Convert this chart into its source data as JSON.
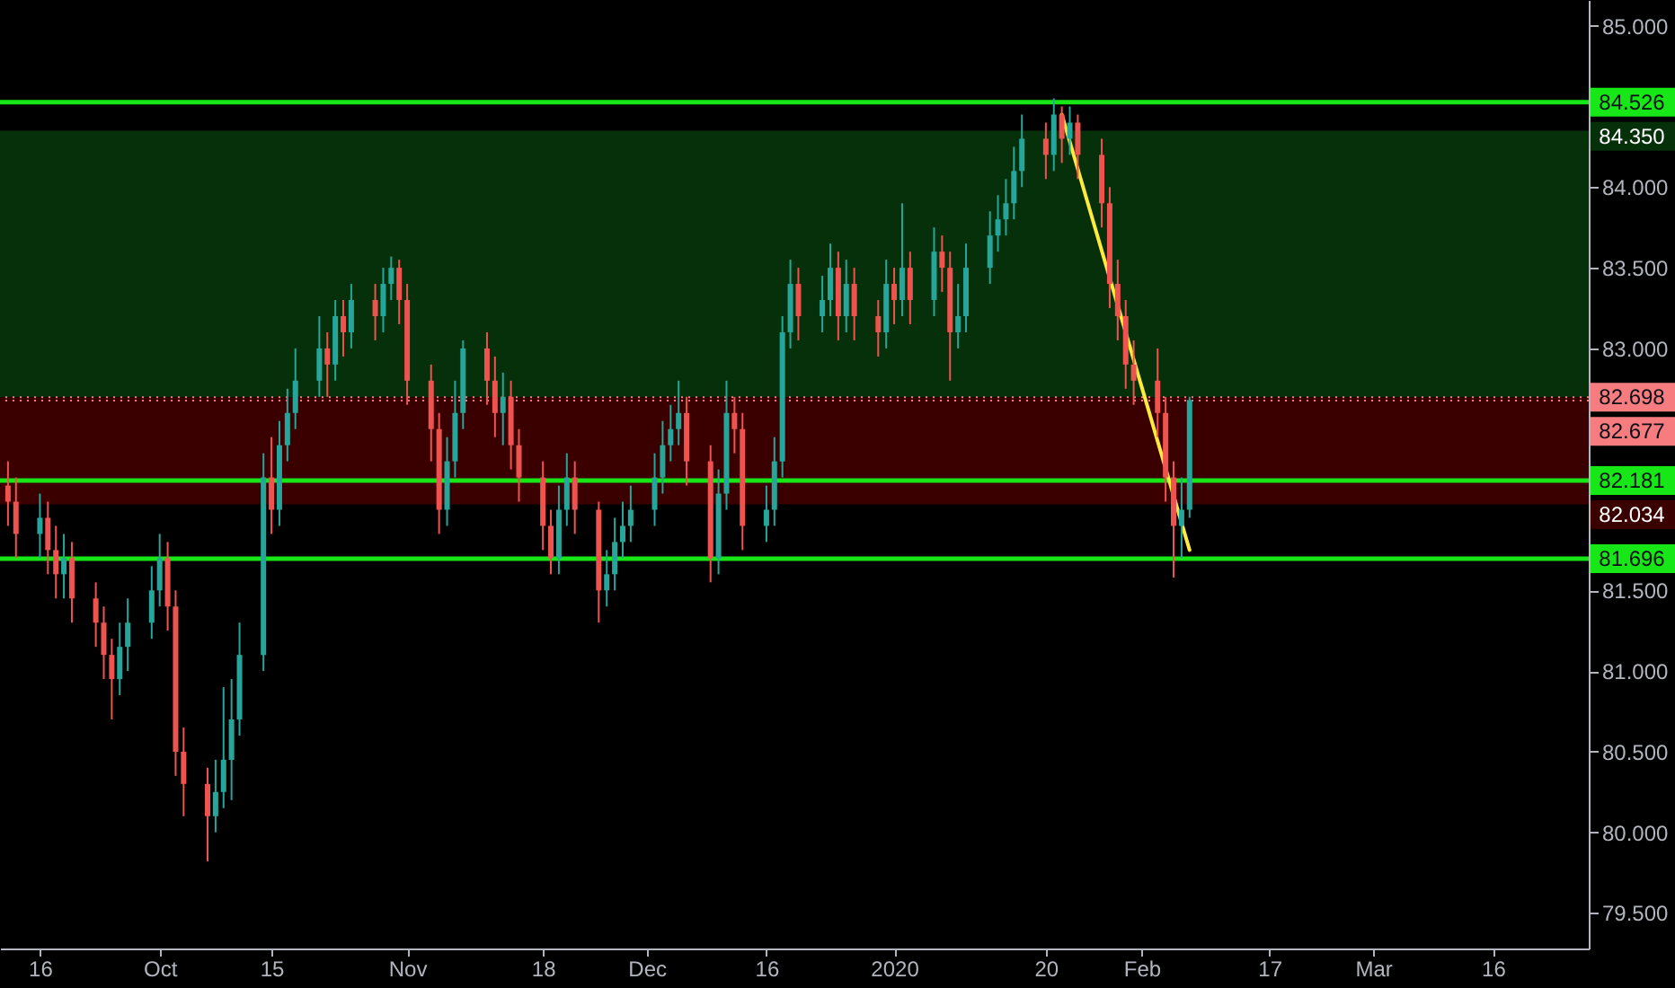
{
  "chart_data": {
    "type": "candlestick",
    "x": [
      "2019-09-12",
      "2019-09-13",
      "2019-09-16",
      "2019-09-17",
      "2019-09-18",
      "2019-09-19",
      "2019-09-20",
      "2019-09-23",
      "2019-09-24",
      "2019-09-25",
      "2019-09-26",
      "2019-09-27",
      "2019-09-30",
      "2019-10-01",
      "2019-10-02",
      "2019-10-03",
      "2019-10-04",
      "2019-10-07",
      "2019-10-08",
      "2019-10-09",
      "2019-10-10",
      "2019-10-11",
      "2019-10-14",
      "2019-10-15",
      "2019-10-16",
      "2019-10-17",
      "2019-10-18",
      "2019-10-21",
      "2019-10-22",
      "2019-10-23",
      "2019-10-24",
      "2019-10-25",
      "2019-10-28",
      "2019-10-29",
      "2019-10-30",
      "2019-10-31",
      "2019-11-01",
      "2019-11-04",
      "2019-11-05",
      "2019-11-06",
      "2019-11-07",
      "2019-11-08",
      "2019-11-11",
      "2019-11-12",
      "2019-11-13",
      "2019-11-14",
      "2019-11-15",
      "2019-11-18",
      "2019-11-19",
      "2019-11-20",
      "2019-11-21",
      "2019-11-22",
      "2019-11-25",
      "2019-11-26",
      "2019-11-27",
      "2019-11-28",
      "2019-11-29",
      "2019-12-02",
      "2019-12-03",
      "2019-12-04",
      "2019-12-05",
      "2019-12-06",
      "2019-12-09",
      "2019-12-10",
      "2019-12-11",
      "2019-12-12",
      "2019-12-13",
      "2019-12-16",
      "2019-12-17",
      "2019-12-18",
      "2019-12-19",
      "2019-12-20",
      "2019-12-23",
      "2019-12-24",
      "2019-12-25",
      "2019-12-26",
      "2019-12-27",
      "2019-12-30",
      "2019-12-31",
      "2020-01-01",
      "2020-01-02",
      "2020-01-03",
      "2020-01-06",
      "2020-01-07",
      "2020-01-08",
      "2020-01-09",
      "2020-01-10",
      "2020-01-13",
      "2020-01-14",
      "2020-01-15",
      "2020-01-16",
      "2020-01-17",
      "2020-01-20",
      "2020-01-21",
      "2020-01-22",
      "2020-01-23",
      "2020-01-24",
      "2020-01-27",
      "2020-01-28",
      "2020-01-29",
      "2020-01-30",
      "2020-01-31",
      "2020-02-03",
      "2020-02-04",
      "2020-02-05",
      "2020-02-06",
      "2020-02-07"
    ],
    "ohlc": [
      [
        82.15,
        82.3,
        81.9,
        82.05
      ],
      [
        82.05,
        82.2,
        81.7,
        81.85
      ],
      [
        81.85,
        82.1,
        81.7,
        81.95
      ],
      [
        81.95,
        82.05,
        81.6,
        81.75
      ],
      [
        81.75,
        81.9,
        81.45,
        81.6
      ],
      [
        81.6,
        81.85,
        81.45,
        81.7
      ],
      [
        81.7,
        81.8,
        81.3,
        81.45
      ],
      [
        81.45,
        81.55,
        81.15,
        81.3
      ],
      [
        81.3,
        81.4,
        80.95,
        81.1
      ],
      [
        81.1,
        81.2,
        80.7,
        80.95
      ],
      [
        80.95,
        81.3,
        80.85,
        81.15
      ],
      [
        81.15,
        81.45,
        81.0,
        81.3
      ],
      [
        81.3,
        81.65,
        81.2,
        81.5
      ],
      [
        81.5,
        81.85,
        81.4,
        81.7
      ],
      [
        81.7,
        81.8,
        81.25,
        81.4
      ],
      [
        81.4,
        81.5,
        80.35,
        80.5
      ],
      [
        80.5,
        80.65,
        80.1,
        80.3
      ],
      [
        80.3,
        80.4,
        79.82,
        80.1
      ],
      [
        80.1,
        80.45,
        80.0,
        80.25
      ],
      [
        80.25,
        80.9,
        80.15,
        80.45
      ],
      [
        80.45,
        80.95,
        80.2,
        80.7
      ],
      [
        80.7,
        81.3,
        80.6,
        81.1
      ],
      [
        81.1,
        82.35,
        81.0,
        82.2
      ],
      [
        82.2,
        82.45,
        81.85,
        82.0
      ],
      [
        82.0,
        82.55,
        81.9,
        82.4
      ],
      [
        82.4,
        82.75,
        82.3,
        82.6
      ],
      [
        82.6,
        83.0,
        82.5,
        82.8
      ],
      [
        82.8,
        83.2,
        82.7,
        83.0
      ],
      [
        83.0,
        83.1,
        82.7,
        82.9
      ],
      [
        82.9,
        83.3,
        82.8,
        83.2
      ],
      [
        83.2,
        83.3,
        82.95,
        83.1
      ],
      [
        83.1,
        83.4,
        83.0,
        83.3
      ],
      [
        83.3,
        83.4,
        83.05,
        83.2
      ],
      [
        83.2,
        83.5,
        83.1,
        83.4
      ],
      [
        83.4,
        83.57,
        83.3,
        83.5
      ],
      [
        83.5,
        83.55,
        83.15,
        83.3
      ],
      [
        83.3,
        83.4,
        82.65,
        82.8
      ],
      [
        82.8,
        82.9,
        82.3,
        82.5
      ],
      [
        82.5,
        82.6,
        81.85,
        82.0
      ],
      [
        82.0,
        82.45,
        81.9,
        82.3
      ],
      [
        82.3,
        82.8,
        82.2,
        82.6
      ],
      [
        82.6,
        83.05,
        82.5,
        83.0
      ],
      [
        83.0,
        83.1,
        82.65,
        82.8
      ],
      [
        82.8,
        82.95,
        82.45,
        82.6
      ],
      [
        82.6,
        82.85,
        82.4,
        82.7
      ],
      [
        82.7,
        82.8,
        82.25,
        82.4
      ],
      [
        82.4,
        82.5,
        82.05,
        82.2
      ],
      [
        82.2,
        82.3,
        81.75,
        81.9
      ],
      [
        81.9,
        82.0,
        81.6,
        81.7
      ],
      [
        81.7,
        82.15,
        81.6,
        82.0
      ],
      [
        82.0,
        82.35,
        81.9,
        82.2
      ],
      [
        82.2,
        82.3,
        81.85,
        82.0
      ],
      [
        82.0,
        82.05,
        81.3,
        81.5
      ],
      [
        81.5,
        81.75,
        81.4,
        81.6
      ],
      [
        81.6,
        81.95,
        81.5,
        81.8
      ],
      [
        81.8,
        82.05,
        81.7,
        81.9
      ],
      [
        81.9,
        82.15,
        81.8,
        82.0
      ],
      [
        82.0,
        82.35,
        81.9,
        82.2
      ],
      [
        82.2,
        82.55,
        82.1,
        82.4
      ],
      [
        82.4,
        82.65,
        82.3,
        82.5
      ],
      [
        82.5,
        82.8,
        82.4,
        82.6
      ],
      [
        82.6,
        82.7,
        82.15,
        82.3
      ],
      [
        82.3,
        82.4,
        81.55,
        81.7
      ],
      [
        81.7,
        82.25,
        81.6,
        82.1
      ],
      [
        82.1,
        82.8,
        82.0,
        82.6
      ],
      [
        82.6,
        82.7,
        82.35,
        82.5
      ],
      [
        82.5,
        82.6,
        81.75,
        81.9
      ],
      [
        81.9,
        82.15,
        81.8,
        82.0
      ],
      [
        82.0,
        82.45,
        81.9,
        82.3
      ],
      [
        82.3,
        83.2,
        82.2,
        83.1
      ],
      [
        83.1,
        83.55,
        83.0,
        83.4
      ],
      [
        83.4,
        83.5,
        83.05,
        83.2
      ],
      [
        83.2,
        83.45,
        83.1,
        83.3
      ],
      [
        83.3,
        83.65,
        83.2,
        83.5
      ],
      [
        83.5,
        83.6,
        83.05,
        83.2
      ],
      [
        83.2,
        83.55,
        83.1,
        83.4
      ],
      [
        83.4,
        83.5,
        83.05,
        83.2
      ],
      [
        83.2,
        83.3,
        82.95,
        83.1
      ],
      [
        83.1,
        83.55,
        83.0,
        83.4
      ],
      [
        83.4,
        83.5,
        83.15,
        83.3
      ],
      [
        83.3,
        83.9,
        83.2,
        83.5
      ],
      [
        83.5,
        83.6,
        83.15,
        83.3
      ],
      [
        83.3,
        83.75,
        83.2,
        83.6
      ],
      [
        83.6,
        83.7,
        83.35,
        83.5
      ],
      [
        83.5,
        83.6,
        82.8,
        83.1
      ],
      [
        83.1,
        83.4,
        83.0,
        83.2
      ],
      [
        83.2,
        83.65,
        83.1,
        83.5
      ],
      [
        83.5,
        83.85,
        83.4,
        83.7
      ],
      [
        83.7,
        83.95,
        83.6,
        83.8
      ],
      [
        83.8,
        84.05,
        83.7,
        83.9
      ],
      [
        83.9,
        84.25,
        83.8,
        84.1
      ],
      [
        84.1,
        84.45,
        84.0,
        84.3
      ],
      [
        84.3,
        84.4,
        84.05,
        84.2
      ],
      [
        84.2,
        84.55,
        84.1,
        84.45
      ],
      [
        84.45,
        84.5,
        84.15,
        84.3
      ],
      [
        84.3,
        84.5,
        84.2,
        84.4
      ],
      [
        84.4,
        84.45,
        84.05,
        84.2
      ],
      [
        84.2,
        84.3,
        83.75,
        83.9
      ],
      [
        83.9,
        84.0,
        83.25,
        83.4
      ],
      [
        83.4,
        83.55,
        83.05,
        83.2
      ],
      [
        83.2,
        83.3,
        82.75,
        82.9
      ],
      [
        82.9,
        83.05,
        82.65,
        82.8
      ],
      [
        82.8,
        83.0,
        82.45,
        82.6
      ],
      [
        82.6,
        82.7,
        82.05,
        82.2
      ],
      [
        82.2,
        82.3,
        81.58,
        81.9
      ],
      [
        81.9,
        82.2,
        81.7,
        82.0
      ],
      [
        82.0,
        82.7,
        81.95,
        82.68
      ]
    ],
    "colors": [
      "#ef5350",
      "#ef5350",
      "#26a69a",
      "#ef5350",
      "#ef5350",
      "#26a69a",
      "#ef5350",
      "#ef5350",
      "#ef5350",
      "#ef5350",
      "#26a69a",
      "#26a69a",
      "#26a69a",
      "#26a69a",
      "#ef5350",
      "#ef5350",
      "#ef5350",
      "#ef5350",
      "#26a69a",
      "#26a69a",
      "#26a69a",
      "#26a69a",
      "#26a69a",
      "#ef5350",
      "#26a69a",
      "#26a69a",
      "#26a69a",
      "#26a69a",
      "#ef5350",
      "#26a69a",
      "#ef5350",
      "#26a69a",
      "#ef5350",
      "#26a69a",
      "#26a69a",
      "#ef5350",
      "#ef5350",
      "#ef5350",
      "#ef5350",
      "#26a69a",
      "#26a69a",
      "#26a69a",
      "#ef5350",
      "#ef5350",
      "#26a69a",
      "#ef5350",
      "#ef5350",
      "#ef5350",
      "#ef5350",
      "#26a69a",
      "#26a69a",
      "#ef5350",
      "#ef5350",
      "#26a69a",
      "#26a69a",
      "#26a69a",
      "#26a69a",
      "#26a69a",
      "#26a69a",
      "#26a69a",
      "#26a69a",
      "#ef5350",
      "#ef5350",
      "#26a69a",
      "#26a69a",
      "#ef5350",
      "#ef5350",
      "#26a69a",
      "#26a69a",
      "#26a69a",
      "#26a69a",
      "#ef5350",
      "#26a69a",
      "#26a69a",
      "#ef5350",
      "#26a69a",
      "#ef5350",
      "#ef5350",
      "#26a69a",
      "#ef5350",
      "#26a69a",
      "#ef5350",
      "#26a69a",
      "#ef5350",
      "#ef5350",
      "#26a69a",
      "#26a69a",
      "#26a69a",
      "#26a69a",
      "#26a69a",
      "#26a69a",
      "#26a69a",
      "#ef5350",
      "#26a69a",
      "#ef5350",
      "#26a69a",
      "#ef5350",
      "#ef5350",
      "#ef5350",
      "#ef5350",
      "#ef5350",
      "#ef5350",
      "#ef5350",
      "#ef5350",
      "#ef5350",
      "#26a69a",
      "#26a69a"
    ],
    "series": [
      {
        "type": "line",
        "x": [
          "2020-01-22",
          "2020-02-07"
        ],
        "values": [
          84.45,
          81.75
        ],
        "color": "#ffeb3b"
      }
    ],
    "xlim": [
      "2019-09-11",
      "2020-03-28"
    ],
    "xticks": [
      {
        "value": "2019-09-16",
        "label": "16"
      },
      {
        "value": "2019-10-01",
        "label": "Oct"
      },
      {
        "value": "2019-10-15",
        "label": "15"
      },
      {
        "value": "2019-11-01",
        "label": "Nov"
      },
      {
        "value": "2019-11-18",
        "label": "18"
      },
      {
        "value": "2019-12-01",
        "label": "Dec"
      },
      {
        "value": "2019-12-16",
        "label": "16"
      },
      {
        "value": "2020-01-01",
        "label": "2020"
      },
      {
        "value": "2020-01-20",
        "label": "20"
      },
      {
        "value": "2020-02-01",
        "label": "Feb"
      },
      {
        "value": "2020-02-17",
        "label": "17"
      },
      {
        "value": "2020-03-01",
        "label": "Mar"
      },
      {
        "value": "2020-03-16",
        "label": "16"
      }
    ],
    "ylim": [
      79.28,
      85.16
    ],
    "yticks": [
      {
        "value": 79.5,
        "label": "79.500"
      },
      {
        "value": 80,
        "label": "80.000"
      },
      {
        "value": 80.5,
        "label": "80.500"
      },
      {
        "value": 81,
        "label": "81.000"
      },
      {
        "value": 81.5,
        "label": "81.500"
      },
      {
        "value": 83,
        "label": "83.000"
      },
      {
        "value": 83.5,
        "label": "83.500"
      },
      {
        "value": 84,
        "label": "84.000"
      },
      {
        "value": 85,
        "label": "85.000"
      }
    ],
    "ref_lines": [
      {
        "axis": "y",
        "value": 84.526,
        "label": "84.526",
        "color": "#17e617"
      },
      {
        "axis": "y",
        "value": 82.181,
        "label": "82.181",
        "color": "#17e617"
      },
      {
        "axis": "y",
        "value": 81.696,
        "label": "81.696",
        "color": "#17e617"
      },
      {
        "axis": "y",
        "value": 82.698,
        "label": "82.698",
        "color": "#f77c80",
        "line_style": "dotted"
      },
      {
        "axis": "y",
        "value": 82.677,
        "label": "82.677",
        "color": "#f77c80",
        "line_style": "dotted"
      }
    ],
    "bands": [
      {
        "axis": "y",
        "from": 82.698,
        "to": 84.35,
        "label": "84.350",
        "color": "#06300a"
      },
      {
        "axis": "y",
        "from": 82.034,
        "to": 82.698,
        "label": "82.034",
        "color": "#3a0000"
      }
    ],
    "grid": false
  }
}
